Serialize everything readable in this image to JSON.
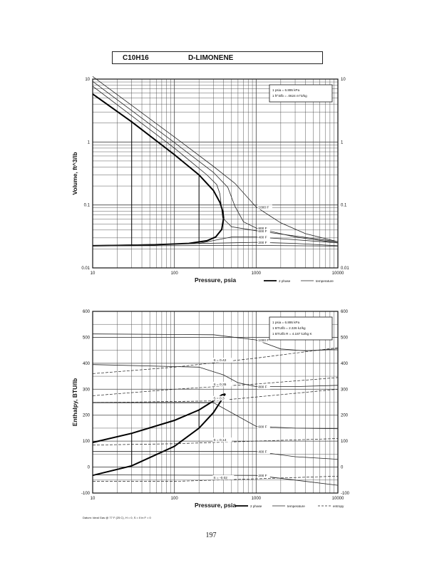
{
  "header": {
    "formula": "C10H16",
    "name": "D-LIMONENE"
  },
  "page_number": "197",
  "chart_data": [
    {
      "type": "line",
      "title": "",
      "xlabel": "Pressure,  psia",
      "ylabel": "Volume, ft^3/lb",
      "x_scale": "log",
      "y_scale": "log",
      "xlim": [
        10,
        10000
      ],
      "ylim": [
        0.01,
        10
      ],
      "x_ticks": [
        "10",
        "100",
        "1000",
        "10000"
      ],
      "y_ticks": [
        "10",
        "1",
        "0.1",
        "0.01"
      ],
      "grid": true,
      "conversion_note": [
        "1 psia = 6.895 kPa",
        "1 ft^3/lb = .0624 m^3/kg"
      ],
      "legend": [
        {
          "label": "2 phase",
          "style": "thick"
        },
        {
          "label": "temperature",
          "style": "thin"
        }
      ],
      "series": [
        {
          "kind": "2 phase",
          "x": [
            10,
            30,
            100,
            200,
            300,
            360,
            390,
            400
          ],
          "y": [
            5.8,
            2.1,
            0.63,
            0.3,
            0.17,
            0.11,
            0.08,
            0.062
          ]
        },
        {
          "kind": "2 phase",
          "x": [
            10,
            50,
            150,
            250,
            320,
            380,
            400
          ],
          "y": [
            0.0225,
            0.0232,
            0.0245,
            0.027,
            0.031,
            0.041,
            0.062
          ]
        },
        {
          "kind": "temperature",
          "label": "1000 F",
          "x": [
            10,
            100,
            300,
            550,
            1000,
            2000,
            4000,
            10000
          ],
          "y": [
            11,
            1.2,
            0.41,
            0.22,
            0.093,
            0.052,
            0.035,
            0.026
          ]
        },
        {
          "kind": "temperature",
          "label": "800 F",
          "x": [
            10,
            100,
            300,
            450,
            550,
            700,
            1000,
            3000,
            10000
          ],
          "y": [
            9.2,
            0.98,
            0.33,
            0.19,
            0.095,
            0.054,
            0.043,
            0.031,
            0.025
          ]
        },
        {
          "kind": "temperature",
          "label": "600 F",
          "x": [
            10,
            100,
            250,
            330,
            360,
            390,
            500,
            1000,
            10000
          ],
          "y": [
            7.7,
            0.8,
            0.3,
            0.21,
            0.15,
            0.062,
            0.045,
            0.039,
            0.026
          ]
        },
        {
          "kind": "temperature",
          "label": "400 F",
          "x": [
            10,
            200,
            500,
            1000,
            3000,
            10000
          ],
          "y": [
            0.0225,
            0.0245,
            0.031,
            0.031,
            0.028,
            0.025
          ]
        },
        {
          "kind": "temperature",
          "label": "200 F",
          "x": [
            10,
            500,
            1000,
            3000,
            10000
          ],
          "y": [
            0.0226,
            0.025,
            0.0255,
            0.0245,
            0.0225
          ]
        },
        {
          "kind": "temperature",
          "label": "",
          "x": [
            10,
            1000,
            10000
          ],
          "y": [
            0.0224,
            0.0228,
            0.0222
          ]
        }
      ],
      "verticals": [
        {
          "x": 30,
          "y": [
            0.0226,
            2.1
          ]
        },
        {
          "x": 200,
          "y": [
            0.0242,
            0.3
          ]
        }
      ]
    },
    {
      "type": "line",
      "title": "",
      "xlabel": "Pressure,  psia",
      "ylabel": "Enthalpy, BTU/lb",
      "x_scale": "log",
      "y_scale": "linear",
      "xlim": [
        10,
        10000
      ],
      "ylim": [
        -100,
        600
      ],
      "x_ticks": [
        "10",
        "100",
        "1000",
        "10000"
      ],
      "y_ticks": [
        "600",
        "500",
        "400",
        "300",
        "200",
        "100",
        "0",
        "-100"
      ],
      "grid": true,
      "conversion_note": [
        "1 psia = 6.895 kPa",
        "1 BTU/lb = 2.326 kJ/kg",
        "1 BTU/lb R = 4.187 kJ/kg K"
      ],
      "datum_note": "Datum: Ideal Gas @ 77 F (25 C), H = 0, S = 0 in F = 0",
      "legend": [
        {
          "label": "2 phase",
          "style": "thick"
        },
        {
          "label": "temperature",
          "style": "thin"
        },
        {
          "label": "entropy",
          "style": "dashed"
        }
      ],
      "series": [
        {
          "kind": "2 phase",
          "x": [
            10,
            30,
            100,
            200,
            300,
            380,
            420
          ],
          "y": [
            95,
            130,
            180,
            220,
            255,
            278,
            282
          ]
        },
        {
          "kind": "2 phase",
          "x": [
            10,
            30,
            100,
            200,
            300,
            380,
            420
          ],
          "y": [
            -32,
            5,
            80,
            150,
            210,
            260,
            282
          ]
        },
        {
          "kind": "temperature",
          "label": "1000 F",
          "x": [
            10,
            300,
            1000,
            2000,
            4000,
            10000
          ],
          "y": [
            513,
            510,
            490,
            455,
            448,
            455
          ]
        },
        {
          "kind": "temperature",
          "label": "800 F",
          "x": [
            10,
            200,
            400,
            600,
            1000,
            3000,
            10000
          ],
          "y": [
            395,
            385,
            355,
            325,
            310,
            310,
            315
          ]
        },
        {
          "kind": "temperature",
          "label": "600 F",
          "x": [
            10,
            300,
            1000,
            3000,
            10000
          ],
          "y": [
            248,
            248,
            157,
            150,
            148
          ]
        },
        {
          "kind": "temperature",
          "label": "400 F",
          "x": [
            10,
            1000,
            3000,
            10000
          ],
          "y": [
            60,
            60,
            40,
            30
          ]
        },
        {
          "kind": "temperature",
          "label": "200 F",
          "x": [
            10,
            1000,
            3000,
            10000
          ],
          "y": [
            -30,
            -32,
            -50,
            -70
          ]
        },
        {
          "kind": "entropy",
          "label": "S = 0.42",
          "x": [
            10,
            100,
            1000,
            10000
          ],
          "y": [
            360,
            385,
            420,
            460
          ]
        },
        {
          "kind": "entropy",
          "label": "S = 0.35",
          "x": [
            10,
            100,
            1000,
            10000
          ],
          "y": [
            275,
            300,
            320,
            345
          ]
        },
        {
          "kind": "entropy",
          "label": "S = 0.3",
          "x": [
            10,
            300,
            1000,
            10000
          ],
          "y": [
            248,
            255,
            270,
            300
          ]
        },
        {
          "kind": "entropy",
          "label": "S = 0.14",
          "x": [
            10,
            100,
            1000,
            10000
          ],
          "y": [
            85,
            90,
            100,
            110
          ]
        },
        {
          "kind": "entropy",
          "label": "S = -0.02",
          "x": [
            10,
            100,
            1000,
            10000
          ],
          "y": [
            -55,
            -55,
            -45,
            -35
          ]
        }
      ],
      "verticals": [
        {
          "x": 30,
          "y": [
            5,
            130
          ]
        },
        {
          "x": 200,
          "y": [
            150,
            220
          ]
        }
      ]
    }
  ]
}
